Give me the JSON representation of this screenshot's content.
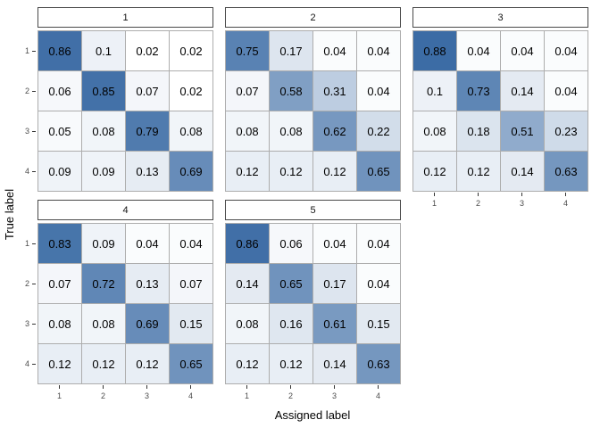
{
  "chart_data": {
    "type": "heatmap",
    "title": "",
    "xlabel": "Assigned label",
    "ylabel": "True label",
    "x_categories": [
      "1",
      "2",
      "3",
      "4"
    ],
    "y_categories": [
      "1",
      "2",
      "3",
      "4"
    ],
    "legend": "none",
    "fill_scale": {
      "low": "#FFFFFF",
      "high": "#3C6CA5",
      "domain": [
        0.02,
        0.88
      ]
    },
    "grid_line_color": "#ADADAD",
    "facets": [
      {
        "label": "1",
        "matrix": [
          [
            0.86,
            0.1,
            0.02,
            0.02
          ],
          [
            0.06,
            0.85,
            0.07,
            0.02
          ],
          [
            0.05,
            0.08,
            0.79,
            0.08
          ],
          [
            0.09,
            0.09,
            0.13,
            0.69
          ]
        ]
      },
      {
        "label": "2",
        "matrix": [
          [
            0.75,
            0.17,
            0.04,
            0.04
          ],
          [
            0.07,
            0.58,
            0.31,
            0.04
          ],
          [
            0.08,
            0.08,
            0.62,
            0.22
          ],
          [
            0.12,
            0.12,
            0.12,
            0.65
          ]
        ]
      },
      {
        "label": "3",
        "matrix": [
          [
            0.88,
            0.04,
            0.04,
            0.04
          ],
          [
            0.1,
            0.73,
            0.14,
            0.04
          ],
          [
            0.08,
            0.18,
            0.51,
            0.23
          ],
          [
            0.12,
            0.12,
            0.14,
            0.63
          ]
        ]
      },
      {
        "label": "4",
        "matrix": [
          [
            0.83,
            0.09,
            0.04,
            0.04
          ],
          [
            0.07,
            0.72,
            0.13,
            0.07
          ],
          [
            0.08,
            0.08,
            0.69,
            0.15
          ],
          [
            0.12,
            0.12,
            0.12,
            0.65
          ]
        ]
      },
      {
        "label": "5",
        "matrix": [
          [
            0.86,
            0.06,
            0.04,
            0.04
          ],
          [
            0.14,
            0.65,
            0.17,
            0.04
          ],
          [
            0.08,
            0.16,
            0.61,
            0.15
          ],
          [
            0.12,
            0.12,
            0.14,
            0.63
          ]
        ]
      }
    ]
  }
}
